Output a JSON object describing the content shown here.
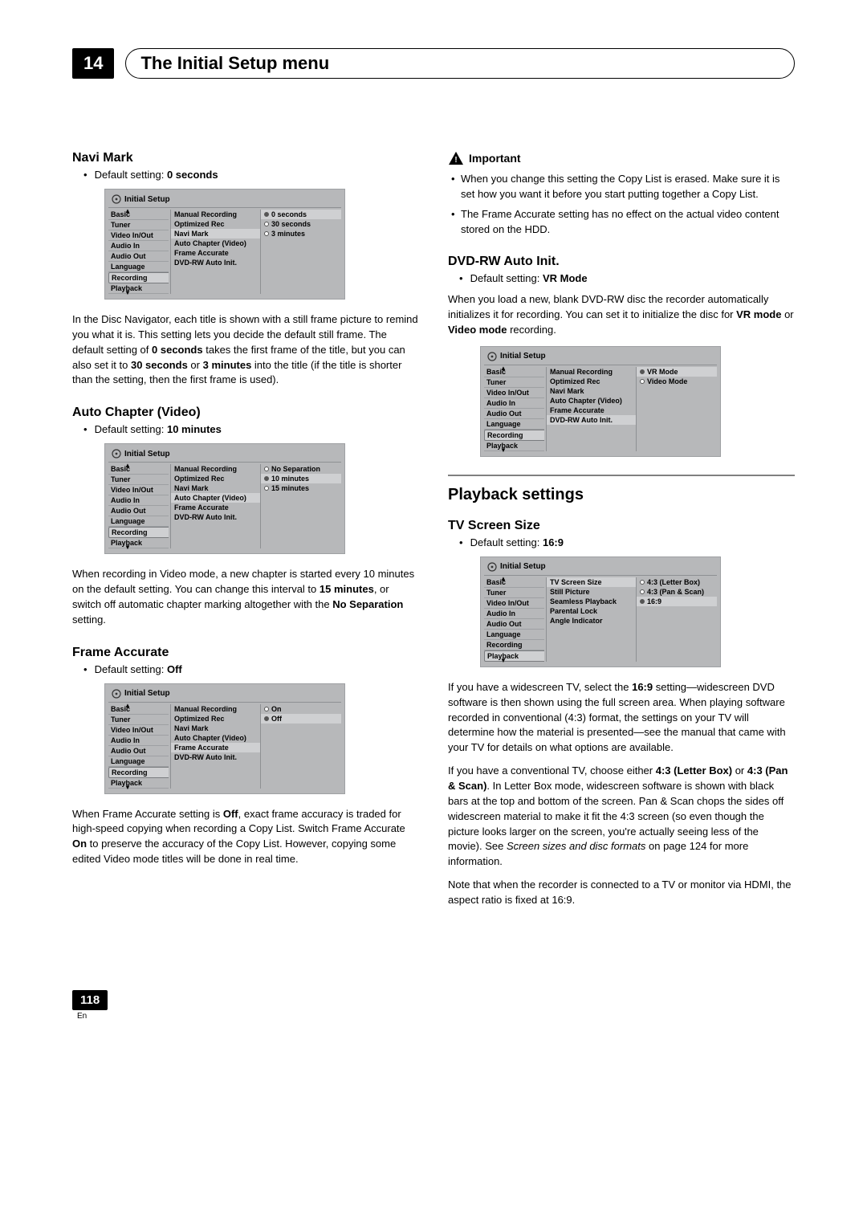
{
  "chapter": {
    "number": "14",
    "title": "The Initial Setup menu"
  },
  "page": {
    "number": "118",
    "lang": "En"
  },
  "menu_common": {
    "title": "Initial Setup",
    "categories": [
      "Basic",
      "Tuner",
      "Video In/Out",
      "Audio In",
      "Audio Out",
      "Language",
      "Recording",
      "Playback"
    ]
  },
  "recording_opts": [
    "Manual Recording",
    "Optimized Rec",
    "Navi Mark",
    "Auto Chapter (Video)",
    "Frame Accurate",
    "DVD-RW Auto Init."
  ],
  "playback_opts": [
    "TV Screen Size",
    "Still Picture",
    "Seamless Playback",
    "Parental Lock",
    "Angle Indicator"
  ],
  "navi_mark": {
    "heading": "Navi Mark",
    "default_label": "Default setting:",
    "default_value": "0 seconds",
    "values": [
      "0 seconds",
      "30 seconds",
      "3 minutes"
    ],
    "selected_idx": 0,
    "para": "In the Disc Navigator, each title is shown with a still frame picture to remind you what it is. This setting lets you decide the default still frame. The default setting of ",
    "para_b1": "0 seconds",
    "para_mid": " takes the first frame of the title, but you can also set it to ",
    "para_b2": "30 seconds",
    "para_or": " or ",
    "para_b3": "3 minutes",
    "para_end": " into the title (if the title is shorter than the setting, then the first frame is used)."
  },
  "auto_chapter": {
    "heading": "Auto Chapter (Video)",
    "default_label": "Default setting:",
    "default_value": "10 minutes",
    "values": [
      "No Separation",
      "10 minutes",
      "15 minutes"
    ],
    "selected_idx": 1,
    "para_a": "When recording in Video mode, a new chapter is started every 10 minutes on the default setting. You can change this interval to ",
    "para_b1": "15 minutes",
    "para_b": ", or switch off automatic chapter marking altogether with the ",
    "para_b2": "No Separation",
    "para_c": " setting."
  },
  "frame_accurate": {
    "heading": "Frame Accurate",
    "default_label": "Default setting:",
    "default_value": "Off",
    "values": [
      "On",
      "Off"
    ],
    "selected_idx": 1,
    "para_a": "When Frame Accurate setting is ",
    "para_b1": "Off",
    "para_b": ", exact frame accuracy is traded for high-speed copying when recording a Copy List. Switch Frame Accurate ",
    "para_b2": "On",
    "para_c": " to preserve the accuracy of the Copy List. However, copying some edited Video mode titles will be done in real time."
  },
  "important": {
    "label": "Important",
    "items": [
      "When you change this setting the Copy List is erased. Make sure it is set how you want it before you start putting together a Copy List.",
      "The Frame Accurate setting has no effect on the actual video content stored on the HDD."
    ]
  },
  "dvdrw": {
    "heading": "DVD-RW Auto Init.",
    "default_label": "Default setting:",
    "default_value": "VR Mode",
    "values": [
      "VR Mode",
      "Video Mode"
    ],
    "selected_idx": 0,
    "para_a": "When you load a new, blank DVD-RW disc the recorder automatically initializes it for recording. You can set it to initialize the disc for ",
    "para_b1": "VR mode",
    "para_or": " or ",
    "para_b2": "Video mode",
    "para_end": " recording."
  },
  "playback_heading": "Playback settings",
  "tv_screen": {
    "heading": "TV Screen Size",
    "default_label": "Default setting:",
    "default_value": "16:9",
    "values": [
      "4:3 (Letter Box)",
      "4:3 (Pan & Scan)",
      "16:9"
    ],
    "selected_idx": 2,
    "p1_a": "If you have a widescreen TV, select the ",
    "p1_b1": "16:9",
    "p1_b": " setting—widescreen DVD software is then shown using the full screen area. When playing software recorded in conventional (4:3) format, the settings on your TV will determine how the material is presented—see the manual that came with your TV for details on what options are available.",
    "p2_a": "If you have a conventional TV, choose either ",
    "p2_b1": "4:3 (Letter Box)",
    "p2_or": " or ",
    "p2_b2": "4:3 (Pan & Scan)",
    "p2_b": ". In Letter Box mode, widescreen software is shown with black bars at the top and bottom of the screen. Pan & Scan chops the sides off widescreen material to make it fit the 4:3 screen (so even though the picture looks larger on the screen, you're actually seeing less of the movie). See ",
    "p2_i": "Screen sizes and disc formats",
    "p2_c": " on page 124 for more information.",
    "p3": "Note that when the recorder is connected to a TV or monitor via HDMI, the aspect ratio is fixed at 16:9."
  }
}
